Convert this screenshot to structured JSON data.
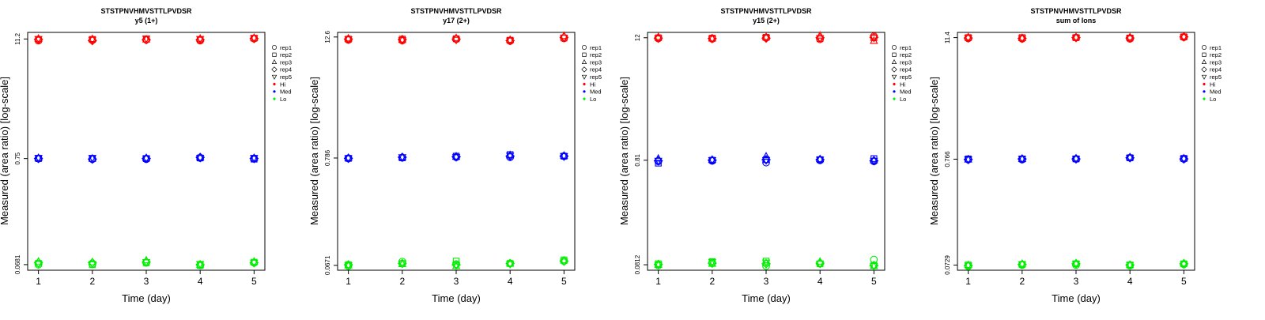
{
  "panels_meta": {
    "xlabel": "Time (day)",
    "ylabel": "Measured (area ratio) [log-scale]"
  },
  "legend": {
    "reps": [
      "rep1",
      "rep2",
      "rep3",
      "rep4",
      "rep5"
    ],
    "levels": [
      "Hi",
      "Med",
      "Lo"
    ]
  },
  "colors": {
    "Hi": "#ff0000",
    "Med": "#0000ff",
    "Lo": "#00ee00"
  },
  "chart_data": [
    {
      "type": "scatter",
      "title": "STSTPNVHMVSTTLPVDSR",
      "subtitle": "y5 (1+)",
      "xlabel": "Time (day)",
      "ylabel": "Measured (area ratio) [log-scale]",
      "y_scale": "log",
      "x_ticks": [
        1,
        2,
        3,
        4,
        5
      ],
      "y_ticks": [
        "0.0681",
        "0.75",
        "11.2"
      ],
      "ylim": [
        0.06,
        13.0
      ],
      "x": [
        1,
        2,
        3,
        4,
        5
      ],
      "series": [
        {
          "level": "Hi",
          "rep": "rep1",
          "values": [
            10.8,
            10.9,
            11.0,
            10.8,
            11.3
          ]
        },
        {
          "level": "Hi",
          "rep": "rep2",
          "values": [
            11.0,
            11.1,
            11.2,
            11.0,
            11.4
          ]
        },
        {
          "level": "Hi",
          "rep": "rep3",
          "values": [
            11.3,
            11.2,
            11.1,
            11.3,
            11.5
          ]
        },
        {
          "level": "Hi",
          "rep": "rep4",
          "values": [
            11.1,
            10.8,
            11.0,
            11.0,
            11.3
          ]
        },
        {
          "level": "Hi",
          "rep": "rep5",
          "values": [
            11.2,
            11.0,
            11.3,
            11.2,
            11.4
          ]
        },
        {
          "level": "Med",
          "rep": "rep1",
          "values": [
            0.75,
            0.74,
            0.74,
            0.76,
            0.75
          ]
        },
        {
          "level": "Med",
          "rep": "rep2",
          "values": [
            0.75,
            0.75,
            0.75,
            0.76,
            0.74
          ]
        },
        {
          "level": "Med",
          "rep": "rep3",
          "values": [
            0.76,
            0.75,
            0.76,
            0.77,
            0.76
          ]
        },
        {
          "level": "Med",
          "rep": "rep4",
          "values": [
            0.75,
            0.74,
            0.75,
            0.77,
            0.75
          ]
        },
        {
          "level": "Med",
          "rep": "rep5",
          "values": [
            0.76,
            0.76,
            0.75,
            0.76,
            0.76
          ]
        },
        {
          "level": "Lo",
          "rep": "rep1",
          "values": [
            0.068,
            0.069,
            0.071,
            0.067,
            0.071
          ]
        },
        {
          "level": "Lo",
          "rep": "rep2",
          "values": [
            0.07,
            0.068,
            0.071,
            0.067,
            0.072
          ]
        },
        {
          "level": "Lo",
          "rep": "rep3",
          "values": [
            0.073,
            0.072,
            0.075,
            0.068,
            0.073
          ]
        },
        {
          "level": "Lo",
          "rep": "rep4",
          "values": [
            0.071,
            0.071,
            0.072,
            0.068,
            0.071
          ]
        },
        {
          "level": "Lo",
          "rep": "rep5",
          "values": [
            0.069,
            0.069,
            0.072,
            0.069,
            0.071
          ]
        }
      ]
    },
    {
      "type": "scatter",
      "title": "STSTPNVHMVSTTLPVDSR",
      "subtitle": "y17 (2+)",
      "xlabel": "Time (day)",
      "ylabel": "Measured (area ratio) [log-scale]",
      "y_scale": "log",
      "x_ticks": [
        1,
        2,
        3,
        4,
        5
      ],
      "y_ticks": [
        "0.0671",
        "0.786",
        "12.6"
      ],
      "ylim": [
        0.06,
        14.0
      ],
      "x": [
        1,
        2,
        3,
        4,
        5
      ],
      "series": [
        {
          "level": "Hi",
          "rep": "rep1",
          "values": [
            11.8,
            11.6,
            12.0,
            11.5,
            12.2
          ]
        },
        {
          "level": "Hi",
          "rep": "rep2",
          "values": [
            12.0,
            12.0,
            12.1,
            11.7,
            12.3
          ]
        },
        {
          "level": "Hi",
          "rep": "rep3",
          "values": [
            12.2,
            11.8,
            12.3,
            11.8,
            12.9
          ]
        },
        {
          "level": "Hi",
          "rep": "rep4",
          "values": [
            12.0,
            11.9,
            12.0,
            11.6,
            12.5
          ]
        },
        {
          "level": "Hi",
          "rep": "rep5",
          "values": [
            11.9,
            11.7,
            11.8,
            11.6,
            12.4
          ]
        },
        {
          "level": "Med",
          "rep": "rep1",
          "values": [
            0.78,
            0.79,
            0.8,
            0.8,
            0.82
          ]
        },
        {
          "level": "Med",
          "rep": "rep2",
          "values": [
            0.78,
            0.79,
            0.82,
            0.85,
            0.82
          ]
        },
        {
          "level": "Med",
          "rep": "rep3",
          "values": [
            0.79,
            0.8,
            0.81,
            0.84,
            0.83
          ]
        },
        {
          "level": "Med",
          "rep": "rep4",
          "values": [
            0.78,
            0.8,
            0.81,
            0.82,
            0.82
          ]
        },
        {
          "level": "Med",
          "rep": "rep5",
          "values": [
            0.78,
            0.8,
            0.8,
            0.83,
            0.82
          ]
        },
        {
          "level": "Lo",
          "rep": "rep1",
          "values": [
            0.066,
            0.073,
            0.069,
            0.07,
            0.074
          ]
        },
        {
          "level": "Lo",
          "rep": "rep2",
          "values": [
            0.068,
            0.07,
            0.074,
            0.07,
            0.076
          ]
        },
        {
          "level": "Lo",
          "rep": "rep3",
          "values": [
            0.067,
            0.069,
            0.066,
            0.07,
            0.075
          ]
        },
        {
          "level": "Lo",
          "rep": "rep4",
          "values": [
            0.068,
            0.07,
            0.068,
            0.07,
            0.074
          ]
        },
        {
          "level": "Lo",
          "rep": "rep5",
          "values": [
            0.067,
            0.07,
            0.067,
            0.069,
            0.073
          ]
        }
      ]
    },
    {
      "type": "scatter",
      "title": "STSTPNVHMVSTTLPVDSR",
      "subtitle": "y15 (2+)",
      "xlabel": "Time (day)",
      "ylabel": "Measured (area ratio) [log-scale]",
      "y_scale": "log",
      "x_ticks": [
        1,
        2,
        3,
        4,
        5
      ],
      "y_ticks": [
        "0.0812",
        "0.81",
        "12"
      ],
      "ylim": [
        0.072,
        13.5
      ],
      "x": [
        1,
        2,
        3,
        4,
        5
      ],
      "series": [
        {
          "level": "Hi",
          "rep": "rep1",
          "values": [
            11.8,
            11.7,
            12.0,
            11.6,
            12.4
          ]
        },
        {
          "level": "Hi",
          "rep": "rep2",
          "values": [
            12.0,
            11.9,
            12.1,
            11.8,
            12.0
          ]
        },
        {
          "level": "Hi",
          "rep": "rep3",
          "values": [
            12.2,
            11.8,
            12.2,
            12.6,
            11.2
          ]
        },
        {
          "level": "Hi",
          "rep": "rep4",
          "values": [
            11.9,
            11.8,
            11.9,
            12.0,
            12.1
          ]
        },
        {
          "level": "Hi",
          "rep": "rep5",
          "values": [
            11.8,
            11.7,
            12.0,
            11.9,
            12.0
          ]
        },
        {
          "level": "Med",
          "rep": "rep1",
          "values": [
            0.79,
            0.8,
            0.77,
            0.81,
            0.79
          ]
        },
        {
          "level": "Med",
          "rep": "rep2",
          "values": [
            0.76,
            0.81,
            0.82,
            0.82,
            0.84
          ]
        },
        {
          "level": "Med",
          "rep": "rep3",
          "values": [
            0.84,
            0.82,
            0.88,
            0.83,
            0.81
          ]
        },
        {
          "level": "Med",
          "rep": "rep4",
          "values": [
            0.8,
            0.81,
            0.82,
            0.82,
            0.8
          ]
        },
        {
          "level": "Med",
          "rep": "rep5",
          "values": [
            0.8,
            0.81,
            0.81,
            0.82,
            0.8
          ]
        },
        {
          "level": "Lo",
          "rep": "rep1",
          "values": [
            0.08,
            0.085,
            0.079,
            0.083,
            0.091
          ]
        },
        {
          "level": "Lo",
          "rep": "rep2",
          "values": [
            0.083,
            0.087,
            0.088,
            0.083,
            0.08
          ]
        },
        {
          "level": "Lo",
          "rep": "rep3",
          "values": [
            0.081,
            0.083,
            0.084,
            0.087,
            0.079
          ]
        },
        {
          "level": "Lo",
          "rep": "rep4",
          "values": [
            0.082,
            0.084,
            0.083,
            0.084,
            0.08
          ]
        },
        {
          "level": "Lo",
          "rep": "rep5",
          "values": [
            0.081,
            0.086,
            0.085,
            0.083,
            0.079
          ]
        }
      ]
    },
    {
      "type": "scatter",
      "title": "STSTPNVHMVSTTLPVDSR",
      "subtitle": "sum of Ions",
      "xlabel": "Time (day)",
      "ylabel": "Measured (area ratio) [log-scale]",
      "y_scale": "log",
      "x_ticks": [
        1,
        2,
        3,
        4,
        5
      ],
      "y_ticks": [
        "0.0729",
        "0.766",
        "11.4"
      ],
      "ylim": [
        0.065,
        12.8
      ],
      "x": [
        1,
        2,
        3,
        4,
        5
      ],
      "series": [
        {
          "level": "Hi",
          "rep": "rep1",
          "values": [
            11.2,
            11.1,
            11.4,
            11.1,
            11.5
          ]
        },
        {
          "level": "Hi",
          "rep": "rep2",
          "values": [
            11.4,
            11.4,
            11.4,
            11.3,
            11.6
          ]
        },
        {
          "level": "Hi",
          "rep": "rep3",
          "values": [
            11.5,
            11.3,
            11.5,
            11.5,
            11.7
          ]
        },
        {
          "level": "Hi",
          "rep": "rep4",
          "values": [
            11.3,
            11.2,
            11.4,
            11.3,
            11.6
          ]
        },
        {
          "level": "Hi",
          "rep": "rep5",
          "values": [
            11.3,
            11.2,
            11.4,
            11.2,
            11.5
          ]
        },
        {
          "level": "Med",
          "rep": "rep1",
          "values": [
            0.76,
            0.76,
            0.77,
            0.79,
            0.77
          ]
        },
        {
          "level": "Med",
          "rep": "rep2",
          "values": [
            0.77,
            0.77,
            0.77,
            0.79,
            0.78
          ]
        },
        {
          "level": "Med",
          "rep": "rep3",
          "values": [
            0.76,
            0.77,
            0.78,
            0.8,
            0.78
          ]
        },
        {
          "level": "Med",
          "rep": "rep4",
          "values": [
            0.76,
            0.77,
            0.77,
            0.79,
            0.77
          ]
        },
        {
          "level": "Med",
          "rep": "rep5",
          "values": [
            0.76,
            0.77,
            0.77,
            0.79,
            0.77
          ]
        },
        {
          "level": "Lo",
          "rep": "rep1",
          "values": [
            0.071,
            0.073,
            0.073,
            0.072,
            0.074
          ]
        },
        {
          "level": "Lo",
          "rep": "rep2",
          "values": [
            0.073,
            0.074,
            0.075,
            0.073,
            0.075
          ]
        },
        {
          "level": "Lo",
          "rep": "rep3",
          "values": [
            0.073,
            0.075,
            0.076,
            0.073,
            0.076
          ]
        },
        {
          "level": "Lo",
          "rep": "rep4",
          "values": [
            0.072,
            0.074,
            0.075,
            0.073,
            0.075
          ]
        },
        {
          "level": "Lo",
          "rep": "rep5",
          "values": [
            0.072,
            0.074,
            0.075,
            0.073,
            0.074
          ]
        }
      ]
    }
  ]
}
